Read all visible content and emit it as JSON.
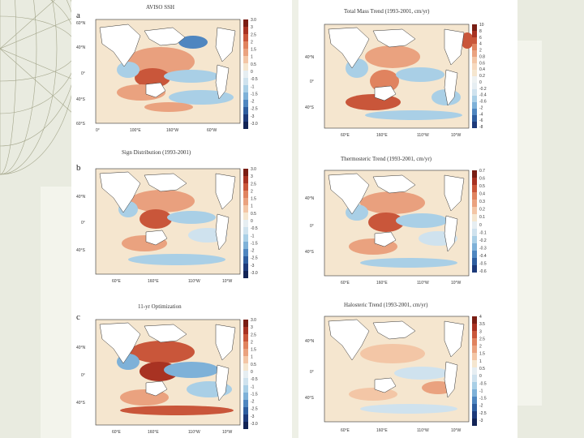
{
  "figure": {
    "panels": [
      {
        "id": "a",
        "label": "a",
        "title": "AVISO SSH",
        "lat_ticks": [
          "60°N",
          "40°N",
          "0°",
          "40°S",
          "60°S"
        ],
        "lon_ticks": [
          "0°",
          "100°E",
          "160°W",
          "60°W"
        ],
        "cbar_ticks": [
          "3.0",
          "3",
          "2.5",
          "2",
          "1.5",
          "1",
          "0.5",
          "0",
          "-0.5",
          "-1",
          "-1.5",
          "-2",
          "-2.5",
          "-3",
          "-3.0"
        ]
      },
      {
        "id": "b",
        "label": "b",
        "title": "Sign Distribution (1993-2001)",
        "lat_ticks": [
          "40°N",
          "0°",
          "40°S"
        ],
        "lon_ticks": [
          "60°E",
          "160°E",
          "110°W",
          "10°W"
        ],
        "cbar_ticks": [
          "3.0",
          "3",
          "2.5",
          "2",
          "1.5",
          "1",
          "0.5",
          "0",
          "-0.5",
          "-1",
          "-1.5",
          "-2",
          "-2.5",
          "-3",
          "-3.0"
        ]
      },
      {
        "id": "c",
        "label": "c",
        "title": "11-yr Optimization",
        "lat_ticks": [
          "40°N",
          "0°",
          "40°S"
        ],
        "lon_ticks": [
          "60°E",
          "160°E",
          "110°W",
          "10°W"
        ],
        "cbar_ticks": [
          "3.0",
          "3",
          "2.5",
          "2",
          "1.5",
          "1",
          "0.5",
          "0",
          "-0.5",
          "-1",
          "-1.5",
          "-2",
          "-2.5",
          "-3",
          "-3.0"
        ]
      },
      {
        "id": "d",
        "label": "",
        "title": "Total Mass Trend (1993-2001, cm/yr)",
        "lat_ticks": [
          "40°N",
          "0°",
          "40°S"
        ],
        "lon_ticks": [
          "60°E",
          "160°E",
          "110°W",
          "10°W"
        ],
        "cbar_ticks": [
          "10",
          "8",
          "6",
          "4",
          "2",
          "0.8",
          "0.6",
          "0.4",
          "0.2",
          "0",
          "-0.2",
          "-0.4",
          "-0.6",
          "-2",
          "-4",
          "-6",
          "-8"
        ]
      },
      {
        "id": "e",
        "label": "",
        "title": "Thermosteric Trend (1993-2001, cm/yr)",
        "lat_ticks": [
          "40°N",
          "0°",
          "40°S"
        ],
        "lon_ticks": [
          "60°E",
          "160°E",
          "110°W",
          "10°W"
        ],
        "cbar_ticks": [
          "0.7",
          "0.6",
          "0.5",
          "0.4",
          "0.3",
          "0.2",
          "0.1",
          "0",
          "-0.1",
          "-0.2",
          "-0.3",
          "-0.4",
          "-0.5",
          "-0.6"
        ]
      },
      {
        "id": "f",
        "label": "",
        "title": "Halosteric Trend (1993-2001, cm/yr)",
        "lat_ticks": [
          "40°N",
          "0°",
          "40°S"
        ],
        "lon_ticks": [
          "60°E",
          "160°E",
          "110°W",
          "10°W"
        ],
        "cbar_ticks": [
          "4",
          "3.5",
          "3",
          "2.5",
          "2",
          "1.5",
          "1",
          "0.5",
          "0",
          "-0.5",
          "-1",
          "-1.5",
          "-2",
          "-2.5",
          "-3"
        ]
      }
    ]
  },
  "colors": {
    "slide_background": "#eef0e6",
    "ocean_neutral": "#f5e6cf",
    "warm_strong": "#c0452e",
    "warm_light": "#eaa27f",
    "cool_light": "#a9cfe6",
    "cool_strong": "#4f86c0",
    "land": "#ffffff"
  }
}
